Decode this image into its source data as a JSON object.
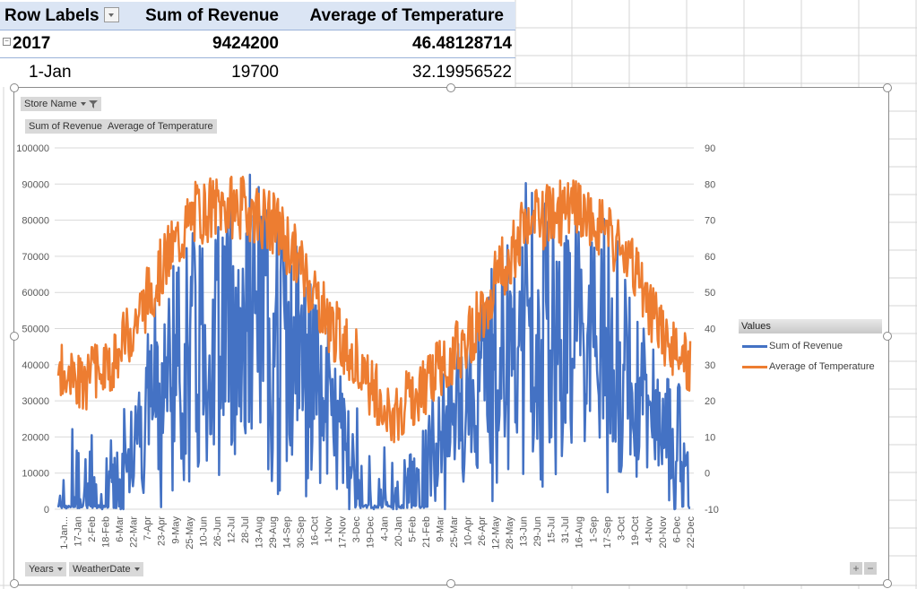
{
  "pivot": {
    "headers": [
      "Row Labels",
      "Sum of Revenue",
      "Average of Temperature"
    ],
    "year_row": {
      "label": "2017",
      "revenue": "9424200",
      "temperature": "46.48128714"
    },
    "day_row": {
      "label": "1-Jan",
      "revenue": "19700",
      "temperature": "32.19956522"
    }
  },
  "chart_buttons": {
    "filter": "Store Name",
    "value_fields": [
      "Sum of Revenue",
      "Average of Temperature"
    ],
    "axis_fields": [
      "Years",
      "WeatherDate"
    ],
    "zoom_in": "+",
    "zoom_out": "−"
  },
  "legend": {
    "title": "Values",
    "items": [
      {
        "label": "Sum of Revenue",
        "color": "#4472c4"
      },
      {
        "label": "Average of Temperature",
        "color": "#ed7d31"
      }
    ]
  },
  "chart_data": {
    "type": "line",
    "title": "",
    "xlabel": "",
    "ylabel": "Sum of Revenue",
    "y2label": "Average of Temperature",
    "ylim": [
      0,
      100000
    ],
    "y2lim": [
      -10,
      90
    ],
    "yticks": [
      "0",
      "10000",
      "20000",
      "30000",
      "40000",
      "50000",
      "60000",
      "70000",
      "80000",
      "90000",
      "100000"
    ],
    "y2ticks": [
      "-10",
      "0",
      "10",
      "20",
      "30",
      "40",
      "50",
      "60",
      "70",
      "80",
      "90"
    ],
    "grid": true,
    "legend_position": "right",
    "x_tick_labels": [
      "1-Jan...",
      "17-Jan",
      "2-Feb",
      "18-Feb",
      "6-Mar",
      "22-Mar",
      "7-Apr",
      "23-Apr",
      "9-May",
      "25-May",
      "10-Jun",
      "26-Jun",
      "12-Jul",
      "28-Jul",
      "13-Aug",
      "29-Aug",
      "14-Sep",
      "30-Sep",
      "16-Oct",
      "1-Nov",
      "17-Nov",
      "3-Dec",
      "19-Dec",
      "4-Jan",
      "20-Jan",
      "5-Feb",
      "21-Feb",
      "9-Mar",
      "25-Mar",
      "10-Apr",
      "26-Apr",
      "12-May",
      "28-May",
      "13-Jun",
      "29-Jun",
      "15-Jul",
      "31-Jul",
      "16-Aug",
      "1-Sep",
      "17-Sep",
      "3-Oct",
      "19-Oct",
      "4-Nov",
      "20-Nov",
      "6-Dec",
      "22-Dec"
    ],
    "series": [
      {
        "name": "Sum of Revenue",
        "axis": "primary",
        "color": "#4472c4",
        "summary": "daily revenue over ~2 years, roughly 0-94000; near 0 in winter months, peak ~94000 around early Aug (year 1) and ~91000 late Jun (year 2)"
      },
      {
        "name": "Average of Temperature",
        "axis": "secondary",
        "color": "#ed7d31",
        "summary": "daily average temperature over ~2 years, ranging ~-5 to ~82; peaks ~80 in Jun-Aug, lows near -5 in early January"
      }
    ],
    "envelope_monthly": {
      "months": [
        "Jan",
        "Feb",
        "Mar",
        "Apr",
        "May",
        "Jun",
        "Jul",
        "Aug",
        "Sep",
        "Oct",
        "Nov",
        "Dec",
        "Jan",
        "Feb",
        "Mar",
        "Apr",
        "May",
        "Jun",
        "Jul",
        "Aug",
        "Sep",
        "Oct",
        "Nov",
        "Dec"
      ],
      "revenue_typical": [
        8000,
        10000,
        9000,
        25000,
        38000,
        45000,
        50000,
        52000,
        45000,
        40000,
        25000,
        12000,
        5000,
        10000,
        18000,
        30000,
        40000,
        48000,
        50000,
        48000,
        42000,
        35000,
        22000,
        12000
      ],
      "temperature_typical": [
        28,
        25,
        30,
        45,
        60,
        72,
        74,
        73,
        68,
        55,
        40,
        30,
        15,
        22,
        30,
        38,
        55,
        68,
        72,
        72,
        66,
        55,
        38,
        30
      ]
    }
  }
}
